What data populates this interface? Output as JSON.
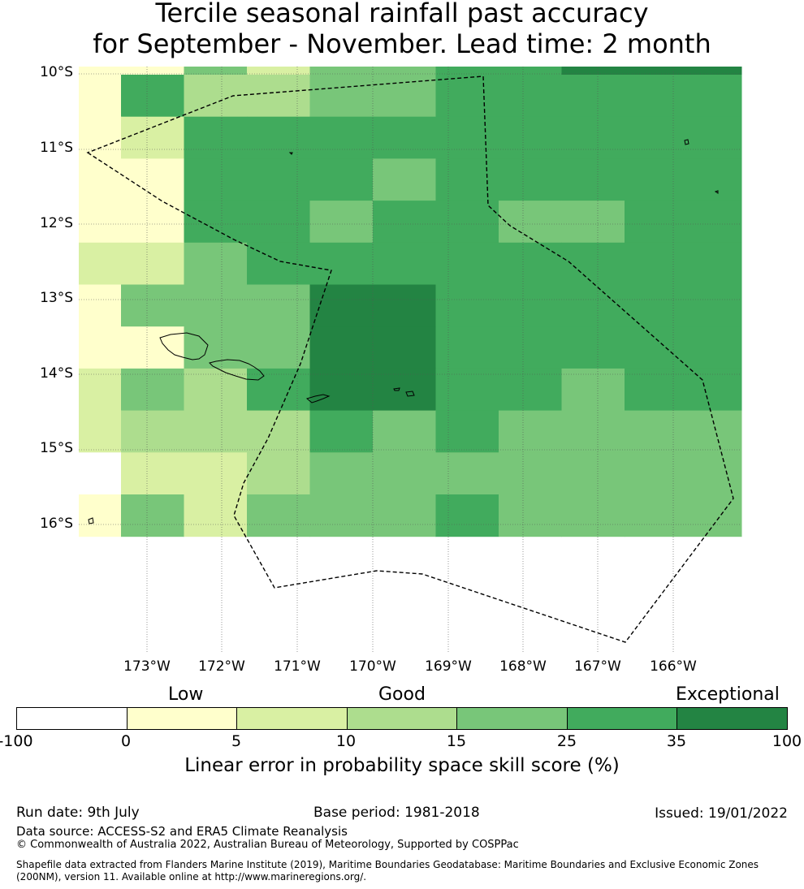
{
  "title": {
    "line1": "Tercile seasonal rainfall past accuracy",
    "line2": "for September - November. Lead time: 2 month"
  },
  "map": {
    "lat_labels": [
      "10°S",
      "11°S",
      "12°S",
      "13°S",
      "14°S",
      "15°S",
      "16°S"
    ],
    "lon_labels": [
      "173°W",
      "172°W",
      "171°W",
      "170°W",
      "169°W",
      "168°W",
      "167°W",
      "166°W"
    ],
    "colors": [
      "#ffffff",
      "#ffffcc",
      "#d9f0a3",
      "#addd8e",
      "#78c679",
      "#41ab5d",
      "#238443"
    ],
    "grid_categories": [
      "1142445566",
      "1533445555",
      "1255555555",
      "1155545555",
      "1155455445",
      "2245555555",
      "1444665555",
      "1144665555",
      "2435665545",
      "2333545444",
      "0223444444",
      "1424445444"
    ]
  },
  "legend": {
    "categories": [
      "Low",
      "Good",
      "Exceptional"
    ],
    "ticks": [
      "-100",
      "0",
      "5",
      "10",
      "15",
      "25",
      "35",
      "100"
    ],
    "colors": [
      "#ffffff",
      "#ffffcc",
      "#d9f0a3",
      "#addd8e",
      "#78c679",
      "#41ab5d",
      "#238443"
    ],
    "title": "Linear error in probability space skill score (%)"
  },
  "footer": {
    "run_date": "Run date: 9th July",
    "base_period": "Base period: 1981-2018",
    "issued": "Issued: 19/01/2022",
    "data_source": "Data source: ACCESS-S2 and ERA5 Climate Reanalysis",
    "copyright": "© Commonwealth of Australia 2022, Australian Bureau of Meteorology, Supported by COSPPac",
    "shapefile": "Shapefile data extracted from Flanders Marine Institute (2019), Maritime Boundaries Geodatabase: Maritime Boundaries and Exclusive Economic Zones (200NM), version 11. Available online at http://www.marineregions.org/."
  }
}
